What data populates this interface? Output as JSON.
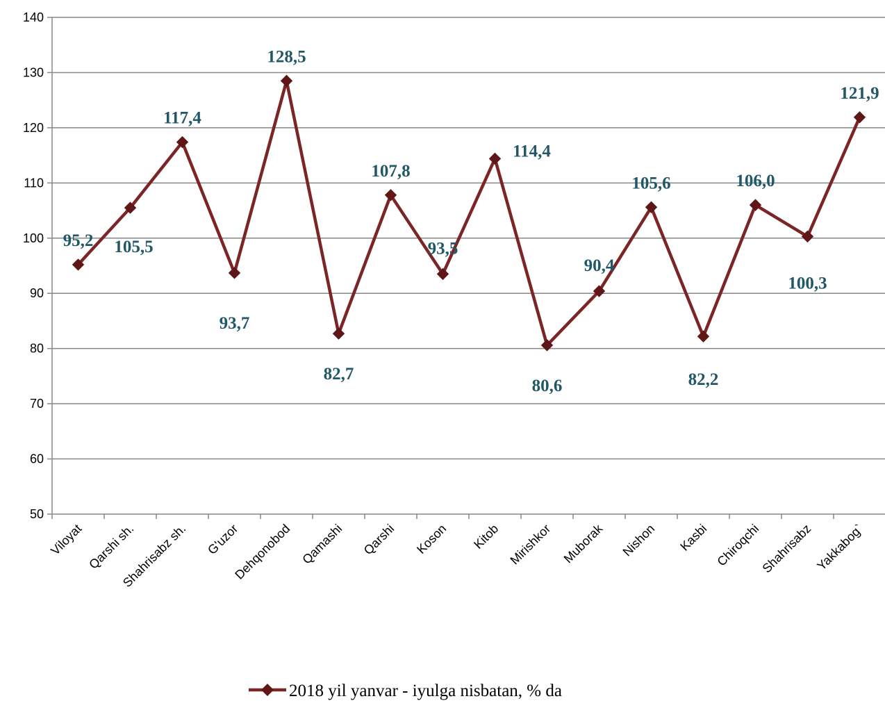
{
  "chart_data": {
    "type": "line",
    "categories": [
      "Viloyat",
      "Qarshi sh.",
      "Shahrisabz sh.",
      "G'uzor",
      "Dehqonobod",
      "Qamashi",
      "Qarshi",
      "Koson",
      "Kitob",
      "Mirishkor",
      "Muborak",
      "Nishon",
      "Kasbi",
      "Chiroqchi",
      "Shahrisabz",
      "Yakkabog`"
    ],
    "series": [
      {
        "name": "2018 yil yanvar - iyulga nisbatan, % da",
        "values": [
          95.2,
          105.5,
          117.4,
          93.7,
          128.5,
          82.7,
          107.8,
          93.5,
          114.4,
          80.6,
          90.4,
          105.6,
          82.2,
          106.0,
          100.3,
          121.9
        ],
        "data_labels": [
          "95,2",
          "105,5",
          "117,4",
          "93,7",
          "128,5",
          "82,7",
          "107,8",
          "93,5",
          "114,4",
          "80,6",
          "90,4",
          "105,6",
          "82,2",
          "106,0",
          "100,3",
          "121,9"
        ],
        "color": "#7B2526"
      }
    ],
    "ylim": [
      50,
      140
    ],
    "yticks": [
      "50",
      "60",
      "70",
      "80",
      "90",
      "100",
      "110",
      "120",
      "130",
      "140"
    ],
    "grid": true,
    "legend_position": "bottom",
    "label_color": "#215868",
    "grid_color": "#878787"
  }
}
